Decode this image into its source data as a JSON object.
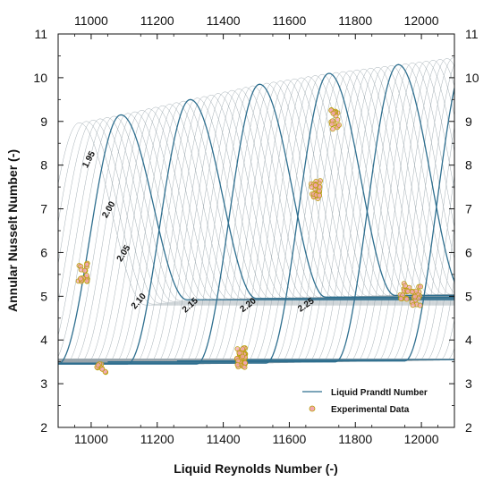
{
  "colors": {
    "prandtl_line": "#2f6f8f",
    "thin_line": "#9aa6ad",
    "marker_fill": "#f4a6b0",
    "marker_edge": "#b5a000",
    "axis": "#111111"
  },
  "chart_data": {
    "type": "line",
    "title": "",
    "xlabel": "Liquid Reynolds Number (-)",
    "ylabel": "Annular Nusselt Number (-)",
    "xlim": [
      10900,
      12100
    ],
    "ylim": [
      2,
      11
    ],
    "xticks": [
      "11000",
      "11200",
      "11400",
      "11600",
      "11800",
      "12000"
    ],
    "yticks": [
      "2",
      "3",
      "4",
      "5",
      "6",
      "7",
      "8",
      "9",
      "10",
      "11"
    ],
    "grid": false,
    "legend_position": "bottom-right",
    "legend": {
      "line_label": "Liquid Prandtl Number",
      "marker_label": "Experimental Data"
    },
    "contour_labels": [
      "1.95",
      "2.00",
      "2.05",
      "2.10",
      "2.15",
      "2.20",
      "2.25"
    ],
    "prandtl_series": [
      {
        "label": "1.95",
        "peak_x": 11090,
        "peak_y": 9.15,
        "low_left": 3.45,
        "low_right": 4.92,
        "x_start": 10900
      },
      {
        "label": "2.00",
        "peak_x": 11300,
        "peak_y": 9.5,
        "low_left": 3.45,
        "low_right": 4.95,
        "x_start": 10900
      },
      {
        "label": "2.05",
        "peak_x": 11510,
        "peak_y": 9.85,
        "low_left": 3.45,
        "low_right": 4.98,
        "x_start": 10900
      },
      {
        "label": "2.10",
        "peak_x": 11720,
        "peak_y": 10.1,
        "low_left": 3.47,
        "low_right": 5.02,
        "x_start": 10900
      },
      {
        "label": "2.15",
        "peak_x": 11930,
        "peak_y": 10.3,
        "low_left": 3.5,
        "low_right": 5.05,
        "x_start": 11050
      },
      {
        "label": "2.20",
        "peak_x": 12140,
        "peak_y": 10.5,
        "low_left": 3.52,
        "low_right": 5.08,
        "x_start": 11260
      },
      {
        "label": "2.25",
        "peak_x": 12350,
        "peak_y": 10.7,
        "low_left": 3.55,
        "low_right": 5.1,
        "x_start": 11470
      }
    ],
    "experimental_clusters": [
      {
        "x": 10975,
        "y": 5.55,
        "n": 22
      },
      {
        "x": 11030,
        "y": 3.35,
        "n": 10
      },
      {
        "x": 11455,
        "y": 3.6,
        "n": 50
      },
      {
        "x": 11680,
        "y": 7.45,
        "n": 28
      },
      {
        "x": 11740,
        "y": 9.05,
        "n": 18
      },
      {
        "x": 11950,
        "y": 5.15,
        "n": 14
      },
      {
        "x": 11985,
        "y": 5.0,
        "n": 18
      }
    ]
  }
}
